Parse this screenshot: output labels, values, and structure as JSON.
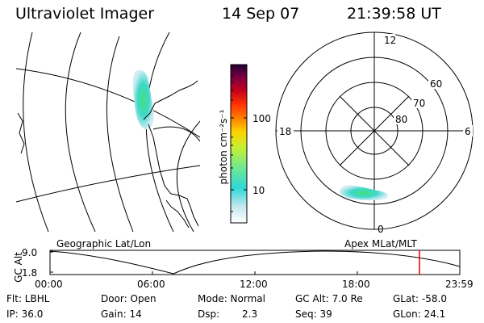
{
  "header": {
    "title": "Ultraviolet Imager",
    "date": "14 Sep 07",
    "time": "21:39:58 UT"
  },
  "colorbar": {
    "unit_label": "photon cm⁻²s⁻¹",
    "tick_100": "100",
    "tick_10": "10",
    "colors": [
      "#ffffff",
      "#c8e8f0",
      "#30d8d8",
      "#70e890",
      "#c8f030",
      "#ffd000",
      "#ff8000",
      "#ff3000",
      "#c00020",
      "#7a0040",
      "#200030"
    ]
  },
  "polar": {
    "label_top": "12",
    "label_bottom": "0",
    "label_left": "18",
    "label_right": "6",
    "lat_60": "60",
    "lat_70": "70",
    "lat_80": "80"
  },
  "map_labels": {
    "left": "Geographic Lat/Lon",
    "right": "Apex MLat/MLT"
  },
  "altitude_plot": {
    "axis_label": "GC Alt",
    "y_max": "9.0",
    "y_min": "1.8",
    "x_ticks": [
      "00:00",
      "06:00",
      "12:00",
      "18:00",
      "23:59"
    ],
    "marker_color": "#e00000"
  },
  "info": {
    "flt": "Flt: LBHL",
    "door": "Door: Open",
    "mode": "Mode: Normal",
    "gc_alt": "GC Alt: 7.0 Re",
    "glat": "GLat: -58.0",
    "ip": "IP: 36.0",
    "gain": "Gain: 14",
    "dsp_label": "Dsp:",
    "dsp_value": "2.3",
    "seq": "Seq: 39",
    "glon": "GLon: 24.1"
  }
}
